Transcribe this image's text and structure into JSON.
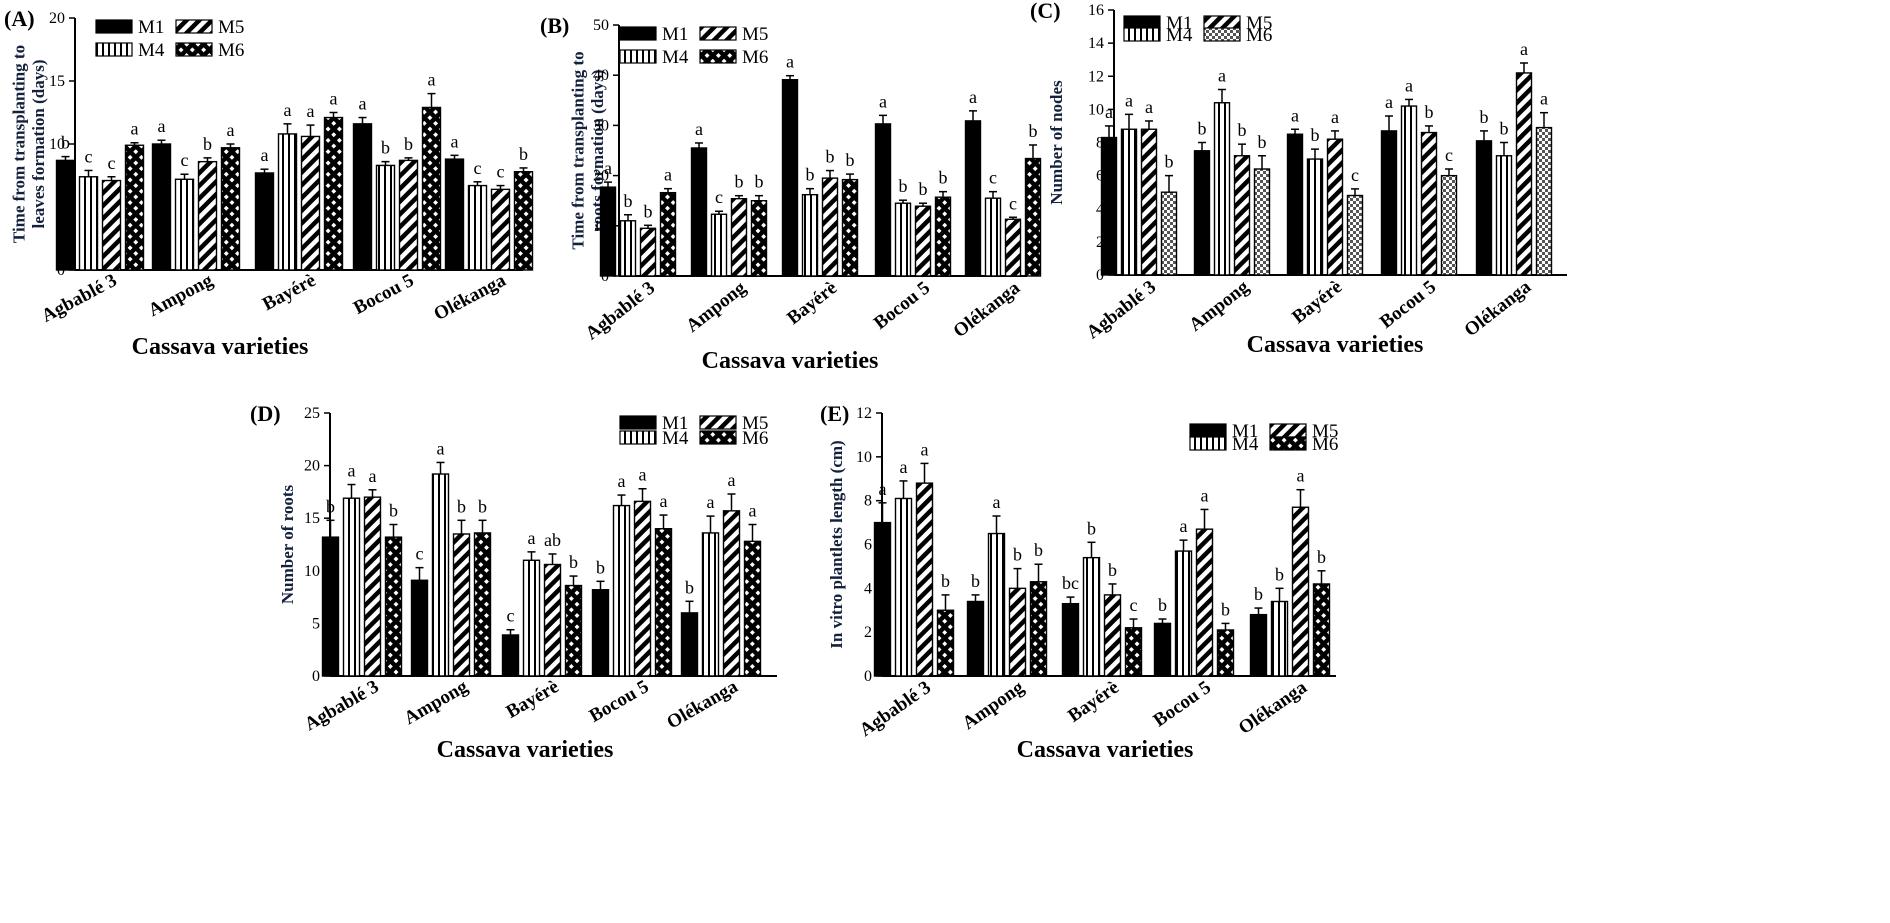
{
  "colors": {
    "ink": "#000000",
    "bg": "#ffffff",
    "ylabel": "#14213d"
  },
  "chart_data": [
    {
      "panel": "(A)",
      "type": "bar",
      "ylabel": "Time from transplanting to leaves formation (days)",
      "xlabel": "Cassava varieties",
      "categories": [
        "Agbablé 3",
        "Ampong",
        "Bayérè",
        "Bocou 5",
        "Olékanga"
      ],
      "ylim": [
        0,
        20
      ],
      "yticks": [
        0,
        5,
        10,
        15,
        20
      ],
      "legend": [
        "M1",
        "M5",
        "M4",
        "M6"
      ],
      "series": [
        {
          "name": "M1",
          "pattern": "solid",
          "values": [
            8.7,
            10.0,
            7.7,
            11.6,
            8.8
          ],
          "errors": [
            0.3,
            0.3,
            0.3,
            0.5,
            0.3
          ],
          "letters": [
            "b",
            "a",
            "a",
            "a",
            "a"
          ]
        },
        {
          "name": "M4",
          "pattern": "vertical",
          "values": [
            7.4,
            7.2,
            10.8,
            8.3,
            6.7
          ],
          "errors": [
            0.5,
            0.4,
            0.8,
            0.3,
            0.3
          ],
          "letters": [
            "c",
            "c",
            "a",
            "b",
            "c"
          ]
        },
        {
          "name": "M5",
          "pattern": "diagonal",
          "values": [
            7.1,
            8.6,
            10.6,
            8.7,
            6.4
          ],
          "errors": [
            0.3,
            0.3,
            0.9,
            0.2,
            0.3
          ],
          "letters": [
            "c",
            "b",
            "a",
            "b",
            "c"
          ]
        },
        {
          "name": "M6",
          "pattern": "cross",
          "values": [
            9.9,
            9.7,
            12.1,
            12.9,
            7.8
          ],
          "errors": [
            0.2,
            0.3,
            0.4,
            1.1,
            0.3
          ],
          "letters": [
            "a",
            "a",
            "a",
            "a",
            "b"
          ]
        }
      ]
    },
    {
      "panel": "(B)",
      "type": "bar",
      "ylabel": "Time from transplanting to roots formation (days)",
      "xlabel": "Cassava varieties",
      "categories": [
        "Agbablé 3",
        "Ampong",
        "Bayérè",
        "Bocou 5",
        "Olékanga"
      ],
      "ylim": [
        0,
        50
      ],
      "yticks": [
        0,
        10,
        20,
        30,
        40,
        50
      ],
      "legend": [
        "M1",
        "M5",
        "M4",
        "M6"
      ],
      "series": [
        {
          "name": "M1",
          "pattern": "solid",
          "values": [
            17.7,
            25.5,
            39.1,
            30.3,
            30.9
          ],
          "errors": [
            1.0,
            1.0,
            0.8,
            1.7,
            2.0
          ],
          "letters": [
            "a",
            "a",
            "a",
            "a",
            "a"
          ]
        },
        {
          "name": "M4",
          "pattern": "vertical",
          "values": [
            11.0,
            12.3,
            16.2,
            14.5,
            15.5
          ],
          "errors": [
            1.2,
            0.6,
            1.2,
            0.6,
            1.3
          ],
          "letters": [
            "b",
            "c",
            "b",
            "b",
            "c"
          ]
        },
        {
          "name": "M5",
          "pattern": "diagonal",
          "values": [
            9.5,
            15.4,
            19.5,
            13.9,
            11.3
          ],
          "errors": [
            0.6,
            0.6,
            1.5,
            0.6,
            0.4
          ],
          "letters": [
            "b",
            "b",
            "b",
            "b",
            "c"
          ]
        },
        {
          "name": "M6",
          "pattern": "cross",
          "values": [
            16.6,
            15.0,
            19.2,
            15.7,
            23.4
          ],
          "errors": [
            0.8,
            1.0,
            1.1,
            1.1,
            2.7
          ],
          "letters": [
            "a",
            "b",
            "b",
            "b",
            "b"
          ]
        }
      ]
    },
    {
      "panel": "(C)",
      "type": "bar",
      "ylabel": "Number of nodes",
      "xlabel": "Cassava varieties",
      "categories": [
        "Agbablé 3",
        "Ampong",
        "Bayérè",
        "Bocou 5",
        "Olékanga"
      ],
      "ylim": [
        0,
        16
      ],
      "yticks": [
        0,
        2,
        4,
        6,
        8,
        10,
        12,
        14,
        16
      ],
      "legend": [
        "M1",
        "M5",
        "M4",
        "M6"
      ],
      "series": [
        {
          "name": "M1",
          "pattern": "solid",
          "values": [
            8.3,
            7.5,
            8.5,
            8.7,
            8.1
          ],
          "errors": [
            0.7,
            0.5,
            0.3,
            0.9,
            0.6
          ],
          "letters": [
            "a",
            "b",
            "a",
            "a",
            "b"
          ]
        },
        {
          "name": "M4",
          "pattern": "vertical",
          "values": [
            8.8,
            10.4,
            7.0,
            10.2,
            7.2
          ],
          "errors": [
            0.9,
            0.8,
            0.6,
            0.4,
            0.8
          ],
          "letters": [
            "a",
            "a",
            "b",
            "a",
            "b"
          ]
        },
        {
          "name": "M5",
          "pattern": "diagonal",
          "values": [
            8.8,
            7.2,
            8.2,
            8.6,
            12.2
          ],
          "errors": [
            0.5,
            0.7,
            0.5,
            0.4,
            0.6
          ],
          "letters": [
            "a",
            "b",
            "a",
            "b",
            "a"
          ]
        },
        {
          "name": "M6",
          "pattern": "dots",
          "values": [
            5.0,
            6.4,
            4.8,
            6.0,
            8.9
          ],
          "errors": [
            1.0,
            0.8,
            0.4,
            0.4,
            0.9
          ],
          "letters": [
            "b",
            "b",
            "c",
            "c",
            "a"
          ]
        }
      ]
    },
    {
      "panel": "(D)",
      "type": "bar",
      "ylabel": "Number of roots",
      "xlabel": "Cassava varieties",
      "categories": [
        "Agbablé 3",
        "Ampong",
        "Bayérè",
        "Bocou 5",
        "Olékanga"
      ],
      "ylim": [
        0,
        25
      ],
      "yticks": [
        0,
        5,
        10,
        15,
        20,
        25
      ],
      "legend": [
        "M1",
        "M5",
        "M4",
        "M6"
      ],
      "series": [
        {
          "name": "M1",
          "pattern": "solid",
          "values": [
            13.2,
            9.1,
            3.9,
            8.2,
            6.0
          ],
          "errors": [
            1.6,
            1.2,
            0.5,
            0.8,
            1.1
          ],
          "letters": [
            "b",
            "c",
            "c",
            "b",
            "b"
          ]
        },
        {
          "name": "M4",
          "pattern": "vertical",
          "values": [
            16.9,
            19.2,
            11.0,
            16.2,
            13.6
          ],
          "errors": [
            1.3,
            1.1,
            0.8,
            1.0,
            1.6
          ],
          "letters": [
            "a",
            "a",
            "a",
            "a",
            "a"
          ]
        },
        {
          "name": "M5",
          "pattern": "diagonal",
          "values": [
            17.0,
            13.5,
            10.6,
            16.6,
            15.7
          ],
          "errors": [
            0.7,
            1.3,
            1.0,
            1.2,
            1.6
          ],
          "letters": [
            "a",
            "b",
            "ab",
            "a",
            "a"
          ]
        },
        {
          "name": "M6",
          "pattern": "cross",
          "values": [
            13.2,
            13.6,
            8.6,
            14.0,
            12.8
          ],
          "errors": [
            1.2,
            1.2,
            0.9,
            1.3,
            1.6
          ],
          "letters": [
            "b",
            "b",
            "b",
            "a",
            "a"
          ]
        }
      ]
    },
    {
      "panel": "(E)",
      "type": "bar",
      "ylabel": "In vitro plantlets length (cm)",
      "xlabel": "Cassava varieties",
      "categories": [
        "Agbablé 3",
        "Ampong",
        "Bayérè",
        "Bocou 5",
        "Olékanga"
      ],
      "ylim": [
        0,
        12
      ],
      "yticks": [
        0,
        2,
        4,
        6,
        8,
        10,
        12
      ],
      "legend": [
        "M1",
        "M5",
        "M4",
        "M6"
      ],
      "series": [
        {
          "name": "M1",
          "pattern": "solid",
          "values": [
            7.0,
            3.4,
            3.3,
            2.4,
            2.8
          ],
          "errors": [
            0.9,
            0.3,
            0.3,
            0.2,
            0.3
          ],
          "letters": [
            "a",
            "b",
            "bc",
            "b",
            "b"
          ]
        },
        {
          "name": "M4",
          "pattern": "vertical",
          "values": [
            8.1,
            6.5,
            5.4,
            5.7,
            3.4
          ],
          "errors": [
            0.8,
            0.8,
            0.7,
            0.5,
            0.6
          ],
          "letters": [
            "a",
            "a",
            "b",
            "a",
            "b"
          ]
        },
        {
          "name": "M5",
          "pattern": "diagonal",
          "values": [
            8.8,
            4.0,
            3.7,
            6.7,
            7.7
          ],
          "errors": [
            0.9,
            0.9,
            0.5,
            0.9,
            0.8
          ],
          "letters": [
            "a",
            "b",
            "b",
            "a",
            "a"
          ]
        },
        {
          "name": "M6",
          "pattern": "cross",
          "values": [
            3.0,
            4.3,
            2.2,
            2.1,
            4.2
          ],
          "errors": [
            0.7,
            0.8,
            0.4,
            0.3,
            0.6
          ],
          "letters": [
            "b",
            "b",
            "c",
            "b",
            "b"
          ]
        }
      ]
    }
  ]
}
